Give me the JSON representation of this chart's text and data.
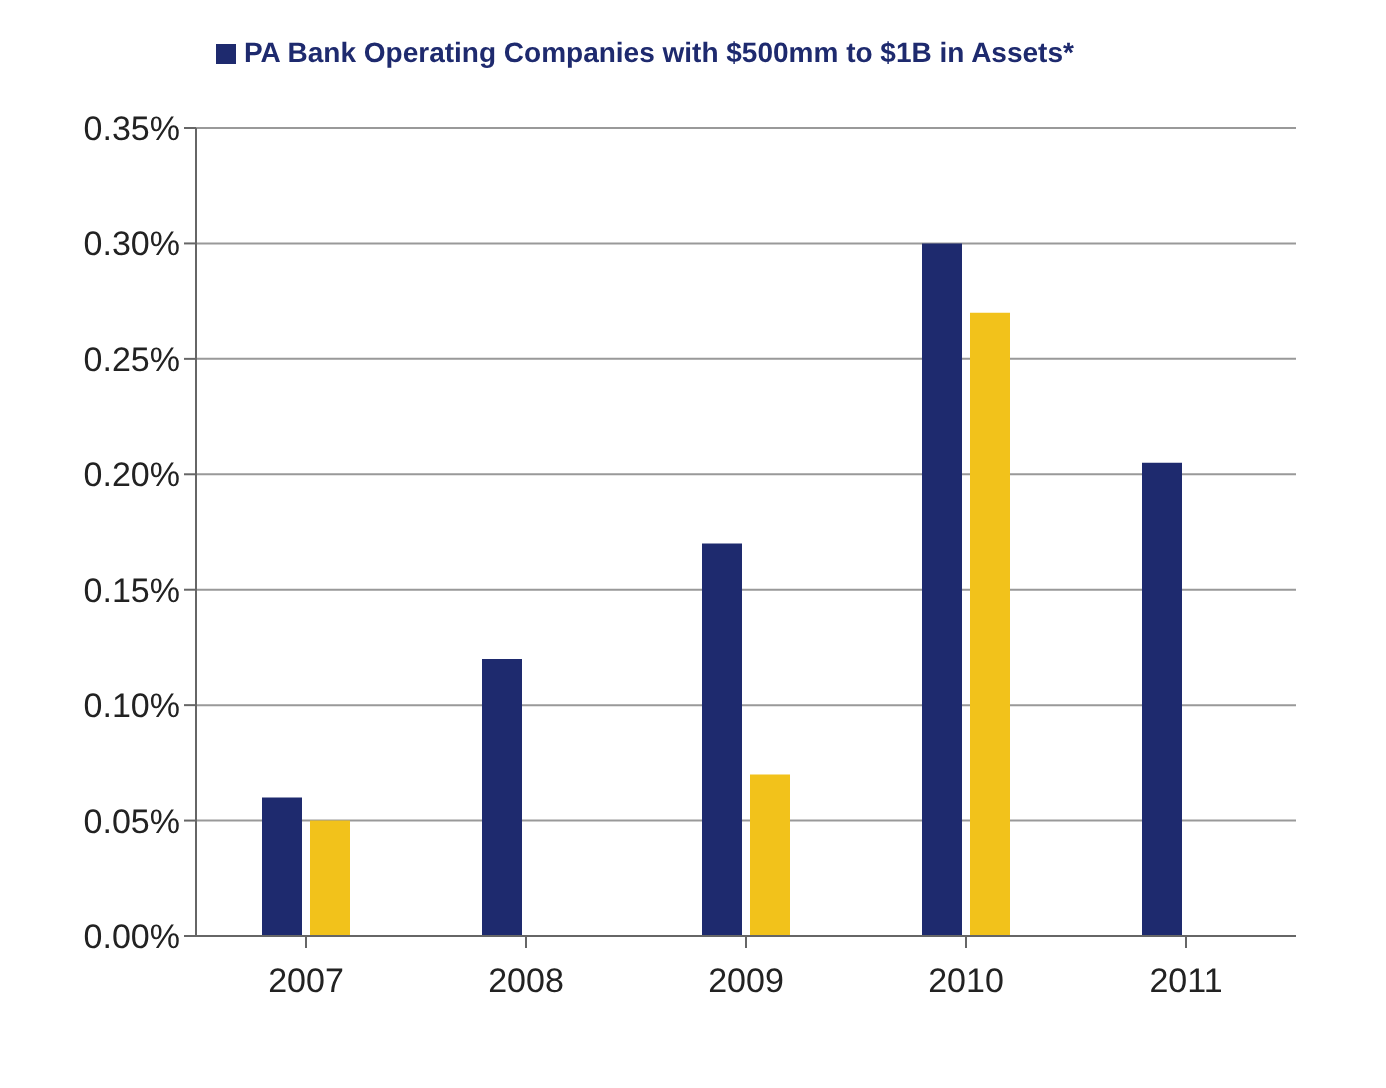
{
  "chart_data": {
    "type": "bar",
    "categories": [
      "2007",
      "2008",
      "2009",
      "2010",
      "2011"
    ],
    "series": [
      {
        "name": "PA Bank Operating Companies with $500mm to $1B in Assets*",
        "color": "#1e2a6e",
        "values": [
          0.06,
          0.12,
          0.17,
          0.3,
          0.205
        ]
      },
      {
        "color": "#f2c21b",
        "values": [
          0.05,
          0,
          0.07,
          0.27,
          0
        ]
      }
    ],
    "ylim": [
      0,
      0.35
    ],
    "yticks": [
      {
        "value": 0,
        "label": "0.00%"
      },
      {
        "value": 0.05,
        "label": "0.05%"
      },
      {
        "value": 0.1,
        "label": "0.10%"
      },
      {
        "value": 0.15,
        "label": "0.15%"
      },
      {
        "value": 0.2,
        "label": "0.20%"
      },
      {
        "value": 0.25,
        "label": "0.25%"
      },
      {
        "value": 0.3,
        "label": "0.30%"
      },
      {
        "value": 0.35,
        "label": "0.35%"
      }
    ],
    "grid": "y",
    "legend": "top left"
  }
}
